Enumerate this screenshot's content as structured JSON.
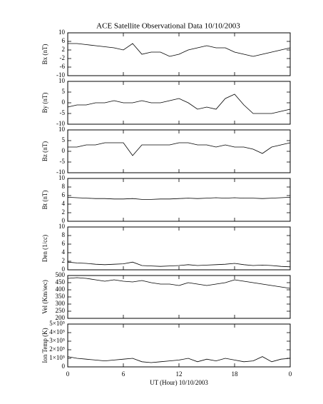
{
  "chart_data": [
    {
      "type": "line",
      "title": "ACE Satellite Observational Data   10/10/2003",
      "ylabel": "Bx (nT)",
      "color": "#000000",
      "xlim": [
        0,
        24
      ],
      "ylim": [
        -10,
        10
      ],
      "yticks": [
        10,
        6,
        2,
        -2,
        -6,
        -10
      ],
      "x": [
        0,
        1,
        2,
        3,
        4,
        5,
        6,
        7,
        8,
        9,
        10,
        11,
        12,
        13,
        14,
        15,
        16,
        17,
        18,
        19,
        20,
        21,
        22,
        23,
        24
      ],
      "values": [
        5,
        5,
        4.5,
        4,
        3.5,
        3,
        2,
        5,
        0,
        1,
        1,
        -1,
        0,
        2,
        3,
        4,
        3,
        3,
        1,
        0,
        -1,
        0,
        1,
        2,
        3
      ]
    },
    {
      "type": "line",
      "ylabel": "By (nT)",
      "color": "#000000",
      "xlim": [
        0,
        24
      ],
      "ylim": [
        -10,
        10
      ],
      "yticks": [
        10,
        5,
        0,
        -5,
        -10
      ],
      "x": [
        0,
        1,
        2,
        3,
        4,
        5,
        6,
        7,
        8,
        9,
        10,
        11,
        12,
        13,
        14,
        15,
        16,
        17,
        18,
        19,
        20,
        21,
        22,
        23,
        24
      ],
      "values": [
        -2,
        -1,
        -1,
        0,
        0,
        1,
        0,
        0,
        1,
        0,
        0,
        1,
        2,
        0,
        -3,
        -2,
        -3,
        2,
        4,
        -1,
        -5,
        -5,
        -5,
        -4,
        -3
      ]
    },
    {
      "type": "line",
      "ylabel": "Bz (nT)",
      "color": "#000000",
      "xlim": [
        0,
        24
      ],
      "ylim": [
        -10,
        10
      ],
      "yticks": [
        10,
        5,
        0,
        -5,
        -10
      ],
      "x": [
        0,
        1,
        2,
        3,
        4,
        5,
        6,
        7,
        8,
        9,
        10,
        11,
        12,
        13,
        14,
        15,
        16,
        17,
        18,
        19,
        20,
        21,
        22,
        23,
        24
      ],
      "values": [
        2,
        2,
        3,
        3,
        4,
        4,
        4,
        -2,
        3,
        3,
        3,
        3,
        4,
        4,
        3,
        3,
        2,
        3,
        2,
        2,
        1,
        -1,
        2,
        3,
        4
      ]
    },
    {
      "type": "line",
      "ylabel": "Bt (nT)",
      "color": "#000000",
      "xlim": [
        0,
        24
      ],
      "ylim": [
        0,
        10
      ],
      "yticks": [
        10,
        8,
        6,
        4,
        2,
        0
      ],
      "x": [
        0,
        1,
        2,
        3,
        4,
        5,
        6,
        7,
        8,
        9,
        10,
        11,
        12,
        13,
        14,
        15,
        16,
        17,
        18,
        19,
        20,
        21,
        22,
        23,
        24
      ],
      "values": [
        5.6,
        5.5,
        5.4,
        5.3,
        5.3,
        5.2,
        5.2,
        5.3,
        5.1,
        5.1,
        5.2,
        5.2,
        5.3,
        5.4,
        5.3,
        5.4,
        5.5,
        5.4,
        5.5,
        5.4,
        5.4,
        5.3,
        5.4,
        5.5,
        5.6
      ]
    },
    {
      "type": "line",
      "ylabel": "Den (1/cc)",
      "color": "#000000",
      "xlim": [
        0,
        24
      ],
      "ylim": [
        0,
        10
      ],
      "yticks": [
        10,
        8,
        6,
        4,
        2,
        0
      ],
      "x": [
        0,
        1,
        2,
        3,
        4,
        5,
        6,
        7,
        8,
        9,
        10,
        11,
        12,
        13,
        14,
        15,
        16,
        17,
        18,
        19,
        20,
        21,
        22,
        23,
        24
      ],
      "values": [
        1.8,
        1.6,
        1.5,
        1.3,
        1.2,
        1.3,
        1.4,
        1.8,
        1.0,
        0.9,
        0.8,
        0.9,
        1.0,
        1.2,
        1.0,
        1.1,
        1.2,
        1.3,
        1.5,
        1.2,
        1.0,
        1.1,
        1.0,
        0.8,
        0.7
      ]
    },
    {
      "type": "line",
      "ylabel": "Vel (Km/sec)",
      "color": "#000000",
      "xlim": [
        0,
        24
      ],
      "ylim": [
        200,
        500
      ],
      "yticks": [
        500,
        450,
        400,
        350,
        300,
        250,
        200
      ],
      "x": [
        0,
        1,
        2,
        3,
        4,
        5,
        6,
        7,
        8,
        9,
        10,
        11,
        12,
        13,
        14,
        15,
        16,
        17,
        18,
        19,
        20,
        21,
        22,
        23,
        24
      ],
      "values": [
        480,
        485,
        480,
        470,
        460,
        470,
        460,
        455,
        465,
        450,
        440,
        440,
        430,
        450,
        440,
        430,
        440,
        450,
        470,
        460,
        450,
        440,
        430,
        420,
        410
      ]
    },
    {
      "type": "line",
      "ylabel": "Ion Temp (K)",
      "xlabel": "UT (Hour)   10/10/2003",
      "color": "#000000",
      "xlim": [
        0,
        24
      ],
      "ylim": [
        0,
        500000
      ],
      "yticks": [
        {
          "value": 500000,
          "label": "5×10⁵"
        },
        {
          "value": 400000,
          "label": "4×10⁵"
        },
        {
          "value": 300000,
          "label": "3×10⁵"
        },
        {
          "value": 200000,
          "label": "2×10⁵"
        },
        {
          "value": 100000,
          "label": "1×10⁵"
        },
        0
      ],
      "xticks": [
        0,
        6,
        12,
        18,
        {
          "value": 24,
          "label": "0"
        }
      ],
      "x": [
        0,
        1,
        2,
        3,
        4,
        5,
        6,
        7,
        8,
        9,
        10,
        11,
        12,
        13,
        14,
        15,
        16,
        17,
        18,
        19,
        20,
        21,
        22,
        23,
        24
      ],
      "values": [
        120000,
        100000,
        90000,
        80000,
        70000,
        80000,
        90000,
        100000,
        60000,
        50000,
        60000,
        70000,
        80000,
        100000,
        60000,
        90000,
        70000,
        100000,
        80000,
        60000,
        70000,
        120000,
        60000,
        90000,
        100000
      ]
    }
  ]
}
